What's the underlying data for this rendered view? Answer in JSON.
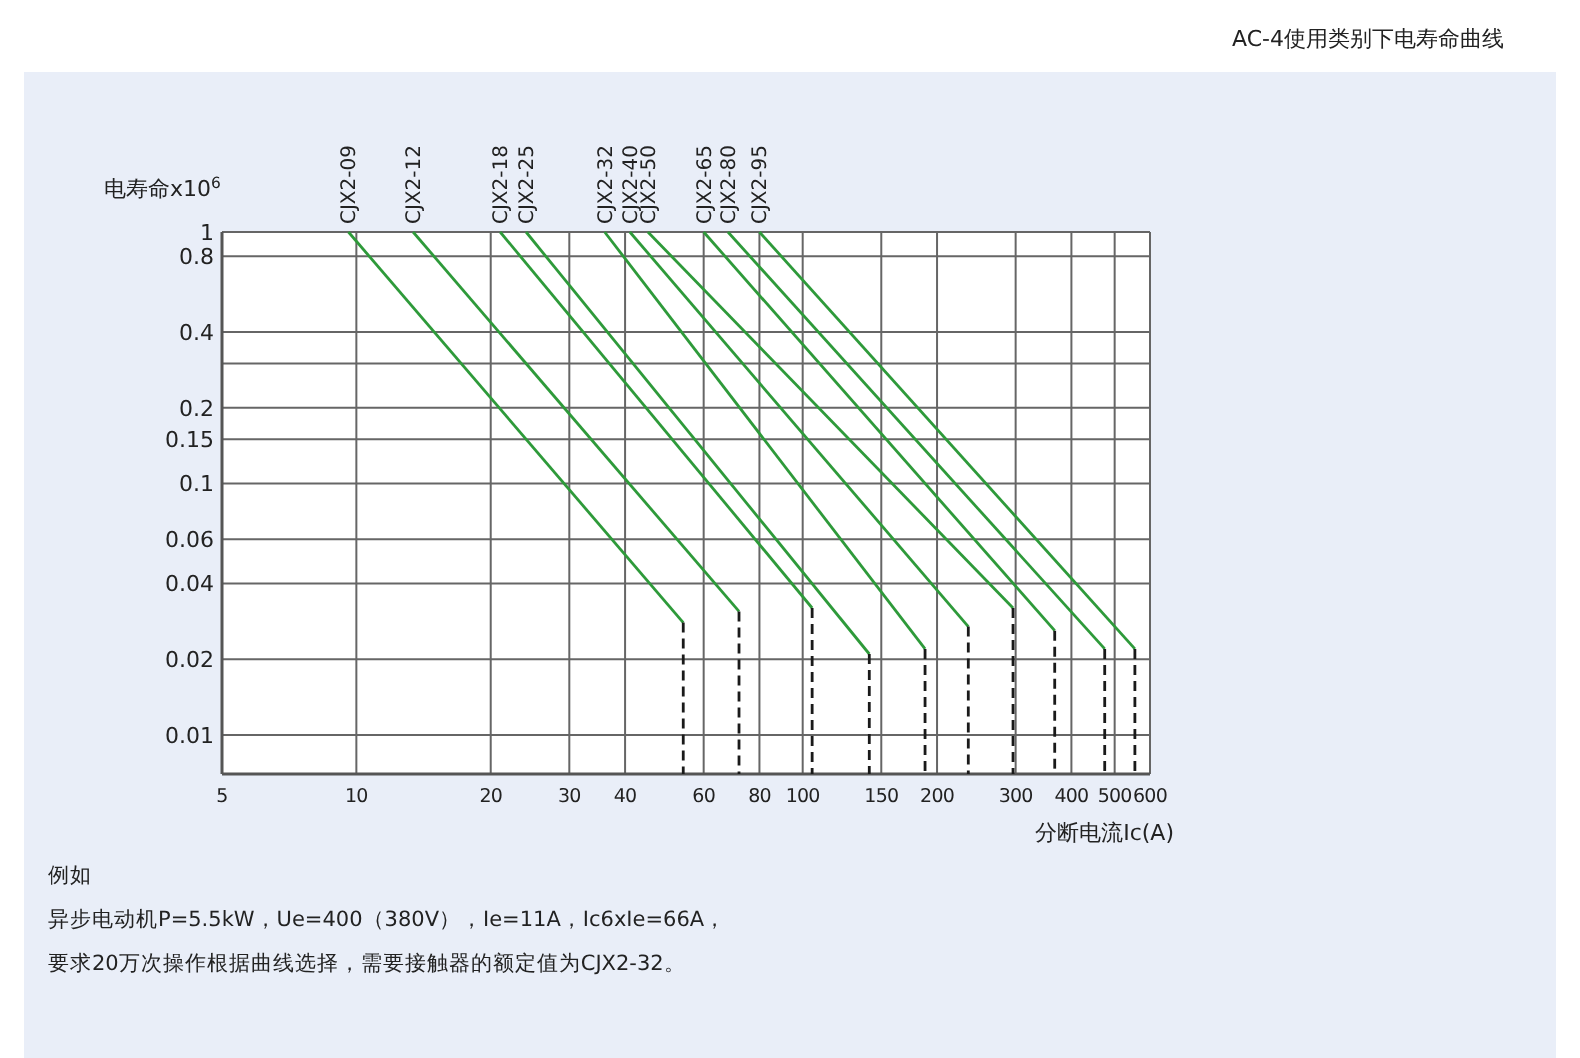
{
  "chart_data": {
    "type": "line",
    "title": "AC-4使用类别下电寿命曲线",
    "ylabel": "电寿命x10$^{6}$",
    "xlabel": "分断电流Ic(A)",
    "log": "xy",
    "grid": true,
    "line_style": "solid",
    "xlim": [
      5,
      600
    ],
    "xticks": [
      5,
      10,
      20,
      30,
      40,
      60,
      80,
      100,
      150,
      200,
      300,
      400,
      500,
      600
    ],
    "ylim": [
      0.007,
      1
    ],
    "yticks": [
      1,
      0.8,
      0.4,
      {
        "value": 0.3,
        "label": null
      },
      0.2,
      0.15,
      0.1,
      0.06,
      0.04,
      0.02,
      0.01
    ],
    "series": [
      {
        "name": "CJX2-09",
        "color": "#2e9a3a",
        "x": [
          9.6,
          54
        ],
        "values": [
          1,
          0.028
        ]
      },
      {
        "name": "CJX2-12",
        "color": "#2e9a3a",
        "x": [
          13.4,
          72
        ],
        "values": [
          1,
          0.031
        ]
      },
      {
        "name": "CJX2-18",
        "color": "#2e9a3a",
        "x": [
          21,
          105
        ],
        "values": [
          1,
          0.032
        ]
      },
      {
        "name": "CJX2-25",
        "color": "#2e9a3a",
        "x": [
          24,
          141
        ],
        "values": [
          1,
          0.021
        ]
      },
      {
        "name": "CJX2-32",
        "color": "#2e9a3a",
        "x": [
          36,
          188
        ],
        "values": [
          1,
          0.022
        ]
      },
      {
        "name": "CJX2-40",
        "color": "#2e9a3a",
        "x": [
          41,
          235
        ],
        "values": [
          1,
          0.027
        ]
      },
      {
        "name": "CJX2-50",
        "color": "#2e9a3a",
        "x": [
          45,
          296
        ],
        "values": [
          1,
          0.032
        ]
      },
      {
        "name": "CJX2-65",
        "color": "#2e9a3a",
        "x": [
          60,
          367
        ],
        "values": [
          1,
          0.026
        ]
      },
      {
        "name": "CJX2-80",
        "color": "#2e9a3a",
        "x": [
          68,
          475
        ],
        "values": [
          1,
          0.022
        ]
      },
      {
        "name": "CJX2-95",
        "color": "#2e9a3a",
        "x": [
          80,
          555
        ],
        "values": [
          1,
          0.022
        ]
      },
      {
        "color": "#1a1a1a",
        "line_style": "dashed",
        "x": [
          54,
          54
        ],
        "values": [
          0.028,
          0.007
        ]
      },
      {
        "color": "#1a1a1a",
        "line_style": "dashed",
        "x": [
          72,
          72
        ],
        "values": [
          0.031,
          0.007
        ]
      },
      {
        "color": "#1a1a1a",
        "line_style": "dashed",
        "x": [
          105,
          105
        ],
        "values": [
          0.032,
          0.007
        ]
      },
      {
        "color": "#1a1a1a",
        "line_style": "dashed",
        "x": [
          141,
          141
        ],
        "values": [
          0.021,
          0.007
        ]
      },
      {
        "color": "#1a1a1a",
        "line_style": "dashed",
        "x": [
          188,
          188
        ],
        "values": [
          0.022,
          0.007
        ]
      },
      {
        "color": "#1a1a1a",
        "line_style": "dashed",
        "x": [
          235,
          235
        ],
        "values": [
          0.027,
          0.007
        ]
      },
      {
        "color": "#1a1a1a",
        "line_style": "dashed",
        "x": [
          296,
          296
        ],
        "values": [
          0.032,
          0.007
        ]
      },
      {
        "color": "#1a1a1a",
        "line_style": "dashed",
        "x": [
          367,
          367
        ],
        "values": [
          0.026,
          0.007
        ]
      },
      {
        "color": "#1a1a1a",
        "line_style": "dashed",
        "x": [
          475,
          475
        ],
        "values": [
          0.022,
          0.007
        ]
      },
      {
        "color": "#1a1a1a",
        "line_style": "dashed",
        "x": [
          555,
          555
        ],
        "values": [
          0.022,
          0.007
        ]
      }
    ],
    "annotations": [
      "例如",
      "异步电动机P=5.5kW，Ue=400（380V），Ie=11A，Ic6xIe=66A，",
      "要求20万次操作根据曲线选择，需要接触器的额定值为CJX2-32。"
    ]
  }
}
